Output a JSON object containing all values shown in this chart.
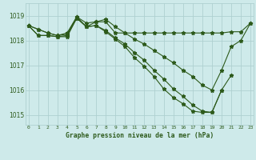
{
  "title": "Graphe pression niveau de la mer (hPa)",
  "xlabel_ticks": [
    "0",
    "1",
    "2",
    "3",
    "4",
    "5",
    "6",
    "7",
    "8",
    "9",
    "10",
    "11",
    "12",
    "13",
    "14",
    "15",
    "16",
    "17",
    "18",
    "19",
    "20",
    "21",
    "22",
    "23"
  ],
  "yticks": [
    1015,
    1016,
    1017,
    1018,
    1019
  ],
  "ylim": [
    1014.6,
    1019.5
  ],
  "xlim": [
    -0.3,
    23.3
  ],
  "bg_color": "#ceeaea",
  "grid_color": "#aed0d0",
  "line_color": "#2d5a1b",
  "series": [
    [
      1018.6,
      1018.45,
      1018.3,
      1018.2,
      1018.25,
      1018.95,
      1018.7,
      1018.75,
      1018.75,
      1018.3,
      1018.3,
      1018.3,
      1018.3,
      1018.3,
      1018.3,
      1018.3,
      1018.3,
      1018.3,
      1018.3,
      1018.3,
      1018.3,
      1018.35,
      1018.35,
      1018.7
    ],
    [
      1018.6,
      1018.45,
      1018.3,
      1018.2,
      1018.3,
      1018.95,
      1018.55,
      1018.75,
      1018.85,
      1018.55,
      1018.3,
      1018.05,
      1017.85,
      1017.6,
      1017.35,
      1017.1,
      1016.8,
      1016.55,
      1016.2,
      1016.0,
      1016.8,
      1017.75,
      1018.0,
      1018.7
    ],
    [
      1018.6,
      1018.2,
      1018.2,
      1018.15,
      1018.15,
      1018.9,
      1018.55,
      1018.6,
      1018.4,
      1018.1,
      1017.85,
      1017.5,
      1017.2,
      1016.8,
      1016.45,
      1016.05,
      1015.75,
      1015.4,
      1015.15,
      1015.1,
      1016.0,
      1016.6,
      null,
      null
    ],
    [
      1018.6,
      1018.2,
      1018.2,
      1018.15,
      1018.2,
      1018.9,
      1018.55,
      1018.6,
      1018.35,
      1018.05,
      1017.75,
      1017.3,
      1016.95,
      1016.55,
      1016.05,
      1015.7,
      1015.45,
      1015.15,
      1015.1,
      1015.1,
      1016.0,
      null,
      null,
      null
    ]
  ]
}
